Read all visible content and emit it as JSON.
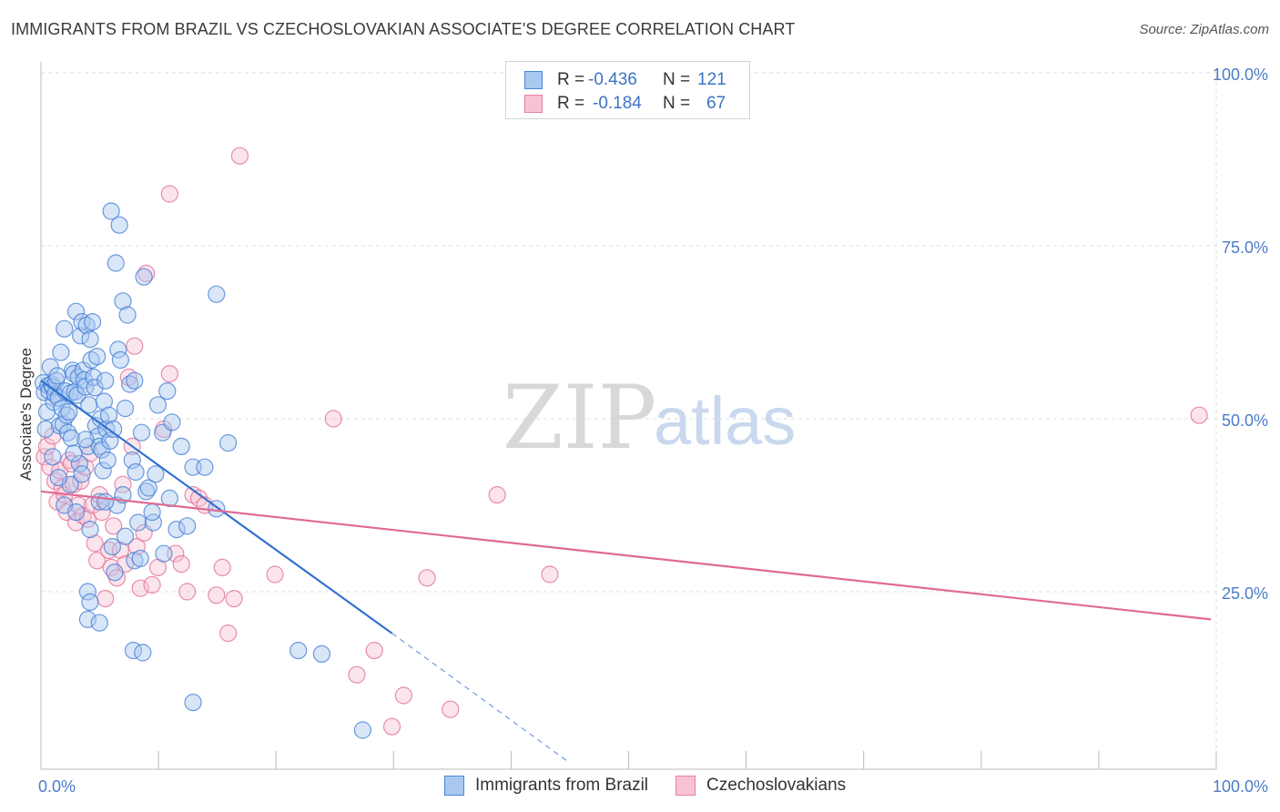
{
  "title": "IMMIGRANTS FROM BRAZIL VS CZECHOSLOVAKIAN ASSOCIATE'S DEGREE CORRELATION CHART",
  "source": "Source: ZipAtlas.com",
  "watermark": {
    "zip": "ZIP",
    "atlas": "atlas"
  },
  "legend": {
    "r_label": "R =",
    "n_label": "N =",
    "series": [
      {
        "name": "Immigrants from Brazil",
        "r": "-0.436",
        "n": "121",
        "fill": "#a9c8f0",
        "stroke": "#4a86d8"
      },
      {
        "name": "Czechoslovakians",
        "r": "-0.184",
        "n": "67",
        "fill": "#f7c3d3",
        "stroke": "#e67fa3"
      }
    ]
  },
  "colors": {
    "blue_fill": "#a9c8f0",
    "blue_stroke": "#3d7ad4",
    "pink_fill": "#f7c3d3",
    "pink_stroke": "#e06a94",
    "grid": "#dddddd",
    "tick_text": "#4a7cc9"
  },
  "chart_data": {
    "type": "scatter",
    "title": "IMMIGRANTS FROM BRAZIL VS CZECHOSLOVAKIAN ASSOCIATE'S DEGREE CORRELATION CHART",
    "xlabel": "",
    "ylabel": "Associate's Degree",
    "xlim": [
      0,
      100
    ],
    "ylim": [
      0,
      100
    ],
    "x_tick_labels": [
      {
        "value": 0,
        "label": "0.0%"
      },
      {
        "value": 100,
        "label": "100.0%"
      }
    ],
    "y_tick_labels": [
      {
        "value": 25,
        "label": "25.0%"
      },
      {
        "value": 50,
        "label": "50.0%"
      },
      {
        "value": 75,
        "label": "75.0%"
      },
      {
        "value": 100,
        "label": "100.0%"
      }
    ],
    "grid": true,
    "series": [
      {
        "name": "Immigrants from Brazil",
        "color": "blue",
        "trend": {
          "x": [
            0,
            30
          ],
          "y": [
            55.5,
            19
          ],
          "dashed_to": [
            45,
            0.5
          ]
        },
        "points": [
          [
            0.2,
            55.2
          ],
          [
            0.3,
            53.8
          ],
          [
            0.4,
            48.5
          ],
          [
            0.5,
            51.0
          ],
          [
            0.6,
            54.8
          ],
          [
            0.7,
            54.0
          ],
          [
            0.8,
            57.5
          ],
          [
            0.9,
            55.0
          ],
          [
            1.0,
            54.6
          ],
          [
            1.1,
            52.4
          ],
          [
            1.2,
            53.5
          ],
          [
            1.3,
            55.5
          ],
          [
            1.4,
            56.2
          ],
          [
            1.5,
            53.0
          ],
          [
            1.6,
            49.0
          ],
          [
            1.7,
            59.6
          ],
          [
            1.8,
            51.5
          ],
          [
            1.9,
            49.2
          ],
          [
            2.0,
            63.0
          ],
          [
            2.1,
            54.0
          ],
          [
            2.2,
            50.5
          ],
          [
            2.3,
            48.0
          ],
          [
            2.4,
            51.0
          ],
          [
            2.5,
            53.7
          ],
          [
            2.6,
            47.2
          ],
          [
            2.7,
            57.0
          ],
          [
            2.8,
            56.5
          ],
          [
            2.9,
            53.9
          ],
          [
            3.0,
            65.5
          ],
          [
            3.1,
            53.4
          ],
          [
            3.2,
            56.0
          ],
          [
            3.3,
            43.5
          ],
          [
            3.4,
            62.0
          ],
          [
            3.5,
            64.0
          ],
          [
            3.6,
            57.0
          ],
          [
            3.7,
            55.6
          ],
          [
            3.8,
            54.6
          ],
          [
            3.9,
            63.5
          ],
          [
            4.0,
            46.0
          ],
          [
            4.1,
            52.0
          ],
          [
            4.2,
            61.5
          ],
          [
            4.3,
            58.5
          ],
          [
            4.4,
            64.0
          ],
          [
            4.5,
            56.0
          ],
          [
            4.6,
            54.5
          ],
          [
            4.7,
            49.0
          ],
          [
            4.8,
            59.0
          ],
          [
            4.9,
            47.5
          ],
          [
            5.0,
            46.0
          ],
          [
            5.1,
            50.0
          ],
          [
            5.2,
            45.5
          ],
          [
            5.3,
            42.5
          ],
          [
            5.4,
            52.5
          ],
          [
            5.5,
            55.5
          ],
          [
            5.6,
            48.5
          ],
          [
            5.7,
            44.0
          ],
          [
            5.8,
            50.5
          ],
          [
            5.9,
            46.8
          ],
          [
            6.0,
            80.0
          ],
          [
            6.2,
            48.5
          ],
          [
            6.4,
            72.5
          ],
          [
            6.6,
            60.0
          ],
          [
            6.8,
            58.5
          ],
          [
            7.0,
            67.0
          ],
          [
            7.2,
            51.5
          ],
          [
            7.4,
            65.0
          ],
          [
            7.6,
            55.0
          ],
          [
            7.8,
            44.0
          ],
          [
            8.0,
            55.5
          ],
          [
            8.3,
            35.0
          ],
          [
            8.6,
            48.0
          ],
          [
            9.0,
            39.5
          ],
          [
            9.2,
            40.0
          ],
          [
            9.6,
            35.0
          ],
          [
            10.0,
            52.0
          ],
          [
            10.4,
            48.0
          ],
          [
            10.8,
            54.0
          ],
          [
            11.2,
            49.5
          ],
          [
            11.6,
            34.0
          ],
          [
            12.0,
            46.0
          ],
          [
            13.0,
            43.0
          ],
          [
            15.0,
            68.0
          ],
          [
            16.0,
            46.5
          ],
          [
            6.7,
            78.0
          ],
          [
            8.8,
            70.5
          ],
          [
            4.2,
            34.0
          ],
          [
            5.0,
            38.0
          ],
          [
            6.1,
            31.5
          ],
          [
            6.3,
            27.8
          ],
          [
            8.0,
            29.5
          ],
          [
            8.5,
            29.8
          ],
          [
            9.5,
            36.5
          ],
          [
            10.5,
            30.5
          ],
          [
            12.5,
            34.5
          ],
          [
            14.0,
            43.0
          ],
          [
            15.0,
            37.0
          ],
          [
            4.0,
            25.0
          ],
          [
            4.2,
            23.5
          ],
          [
            4.0,
            21.0
          ],
          [
            5.0,
            20.5
          ],
          [
            7.9,
            16.5
          ],
          [
            8.7,
            16.2
          ],
          [
            22.0,
            16.5
          ],
          [
            24.0,
            16.0
          ],
          [
            13.0,
            9.0
          ],
          [
            27.5,
            5.0
          ],
          [
            2.0,
            37.5
          ],
          [
            2.5,
            40.5
          ],
          [
            3.0,
            36.5
          ],
          [
            1.5,
            41.5
          ],
          [
            3.5,
            42.0
          ],
          [
            6.5,
            37.5
          ],
          [
            7.0,
            39.0
          ],
          [
            9.8,
            42.0
          ],
          [
            11.0,
            38.5
          ],
          [
            1.0,
            44.5
          ],
          [
            2.8,
            45.0
          ],
          [
            3.8,
            47.0
          ],
          [
            5.5,
            38.0
          ],
          [
            7.2,
            33.0
          ],
          [
            8.1,
            42.3
          ]
        ]
      },
      {
        "name": "Czechoslovakians",
        "color": "pink",
        "trend": {
          "x": [
            0,
            100
          ],
          "y": [
            39.5,
            21
          ]
        },
        "points": [
          [
            0.3,
            44.5
          ],
          [
            0.5,
            46.0
          ],
          [
            0.8,
            43.0
          ],
          [
            1.0,
            47.5
          ],
          [
            1.2,
            41.0
          ],
          [
            1.4,
            38.0
          ],
          [
            1.6,
            42.5
          ],
          [
            1.8,
            40.0
          ],
          [
            2.0,
            39.0
          ],
          [
            2.2,
            36.5
          ],
          [
            2.4,
            44.0
          ],
          [
            2.6,
            43.5
          ],
          [
            2.8,
            40.5
          ],
          [
            3.0,
            35.0
          ],
          [
            3.2,
            37.5
          ],
          [
            3.4,
            41.0
          ],
          [
            3.6,
            36.0
          ],
          [
            3.8,
            43.0
          ],
          [
            4.0,
            35.5
          ],
          [
            4.2,
            45.0
          ],
          [
            4.4,
            37.5
          ],
          [
            4.6,
            32.0
          ],
          [
            4.8,
            29.5
          ],
          [
            5.0,
            39.0
          ],
          [
            5.2,
            36.5
          ],
          [
            5.5,
            24.0
          ],
          [
            5.8,
            31.0
          ],
          [
            6.0,
            28.5
          ],
          [
            6.2,
            34.5
          ],
          [
            6.5,
            27.0
          ],
          [
            6.8,
            31.0
          ],
          [
            7.0,
            40.5
          ],
          [
            7.2,
            29.0
          ],
          [
            7.5,
            56.0
          ],
          [
            7.8,
            46.0
          ],
          [
            8.0,
            60.5
          ],
          [
            8.2,
            31.5
          ],
          [
            8.5,
            25.5
          ],
          [
            8.8,
            33.5
          ],
          [
            9.0,
            71.0
          ],
          [
            9.5,
            26.0
          ],
          [
            10.0,
            28.5
          ],
          [
            10.5,
            48.5
          ],
          [
            11.0,
            56.5
          ],
          [
            11.5,
            30.5
          ],
          [
            12.0,
            29.0
          ],
          [
            12.5,
            25.0
          ],
          [
            13.0,
            39.0
          ],
          [
            13.5,
            38.5
          ],
          [
            14.0,
            37.5
          ],
          [
            15.0,
            24.5
          ],
          [
            15.5,
            28.5
          ],
          [
            16.0,
            19.0
          ],
          [
            16.5,
            24.0
          ],
          [
            20.0,
            27.5
          ],
          [
            25.0,
            50.0
          ],
          [
            27.0,
            13.0
          ],
          [
            28.5,
            16.5
          ],
          [
            30.0,
            5.5
          ],
          [
            31.0,
            10.0
          ],
          [
            33.0,
            27.0
          ],
          [
            35.0,
            8.0
          ],
          [
            39.0,
            39.0
          ],
          [
            43.5,
            27.5
          ],
          [
            17.0,
            88.0
          ],
          [
            11.0,
            82.5
          ],
          [
            99.0,
            50.5
          ]
        ]
      }
    ]
  }
}
